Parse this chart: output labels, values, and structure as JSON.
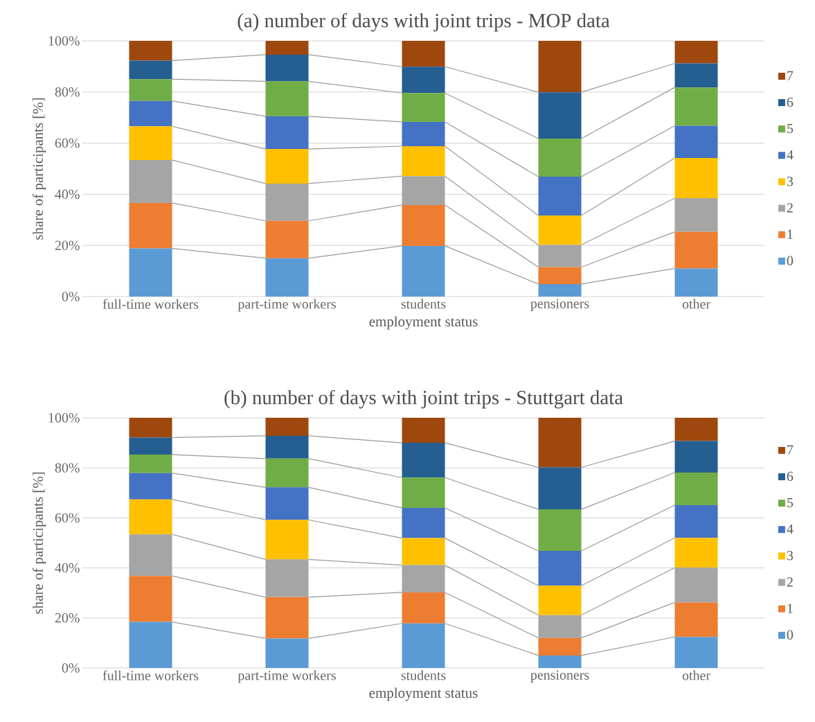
{
  "chart_data": [
    {
      "type": "bar",
      "stacked": true,
      "title": "(a) number of days with joint trips - MOP data",
      "xlabel": "employment status",
      "ylabel": "share of participants [%]",
      "categories": [
        "full-time workers",
        "part-time workers",
        "students",
        "pensioners",
        "other"
      ],
      "ylim": [
        0,
        100
      ],
      "yticks": [
        {
          "value": 0,
          "label": "0%"
        },
        {
          "value": 20,
          "label": "20%"
        },
        {
          "value": 40,
          "label": "40%"
        },
        {
          "value": 60,
          "label": "60%"
        },
        {
          "value": 80,
          "label": "80%"
        },
        {
          "value": 100,
          "label": "100%"
        }
      ],
      "grid": "y",
      "legend": "right",
      "series": [
        {
          "name": "0",
          "color": "#5b9bd5",
          "values": [
            18.8,
            15.0,
            19.8,
            4.9,
            11.0
          ]
        },
        {
          "name": "1",
          "color": "#ed7d31",
          "values": [
            17.8,
            14.6,
            16.0,
            6.6,
            14.3
          ]
        },
        {
          "name": "2",
          "color": "#a5a5a5",
          "values": [
            16.8,
            14.6,
            11.3,
            8.7,
            13.2
          ]
        },
        {
          "name": "3",
          "color": "#ffc000",
          "values": [
            13.2,
            13.5,
            11.7,
            11.5,
            15.7
          ]
        },
        {
          "name": "4",
          "color": "#4472c4",
          "values": [
            9.9,
            12.8,
            9.5,
            15.2,
            12.6
          ]
        },
        {
          "name": "5",
          "color": "#70ad47",
          "values": [
            8.5,
            13.7,
            11.3,
            14.9,
            15.0
          ]
        },
        {
          "name": "6",
          "color": "#255e91",
          "values": [
            7.3,
            10.4,
            10.3,
            18.1,
            9.4
          ]
        },
        {
          "name": "7",
          "color": "#9e480e",
          "values": [
            7.7,
            5.4,
            10.1,
            20.1,
            8.8
          ]
        }
      ]
    },
    {
      "type": "bar",
      "stacked": true,
      "title": "(b) number of days with joint trips - Stuttgart data",
      "xlabel": "employment status",
      "ylabel": "share of participants [%]",
      "categories": [
        "full-time workers",
        "part-time workers",
        "students",
        "pensioners",
        "other"
      ],
      "ylim": [
        0,
        100
      ],
      "yticks": [
        {
          "value": 0,
          "label": "0%"
        },
        {
          "value": 20,
          "label": "20%"
        },
        {
          "value": 40,
          "label": "40%"
        },
        {
          "value": 60,
          "label": "60%"
        },
        {
          "value": 80,
          "label": "80%"
        },
        {
          "value": 100,
          "label": "100%"
        }
      ],
      "grid": "y",
      "legend": "right",
      "series": [
        {
          "name": "0",
          "color": "#5b9bd5",
          "values": [
            18.4,
            11.8,
            17.8,
            5.0,
            12.4
          ]
        },
        {
          "name": "1",
          "color": "#ed7d31",
          "values": [
            18.4,
            16.5,
            12.4,
            7.0,
            13.8
          ]
        },
        {
          "name": "2",
          "color": "#a5a5a5",
          "values": [
            16.6,
            15.1,
            10.9,
            9.1,
            13.9
          ]
        },
        {
          "name": "3",
          "color": "#ffc000",
          "values": [
            14.0,
            15.8,
            10.8,
            11.8,
            11.9
          ]
        },
        {
          "name": "4",
          "color": "#4472c4",
          "values": [
            10.5,
            13.0,
            12.1,
            13.9,
            13.1
          ]
        },
        {
          "name": "5",
          "color": "#70ad47",
          "values": [
            7.4,
            11.5,
            12.1,
            16.6,
            13.0
          ]
        },
        {
          "name": "6",
          "color": "#255e91",
          "values": [
            6.8,
            9.1,
            13.9,
            16.8,
            12.6
          ]
        },
        {
          "name": "7",
          "color": "#9e480e",
          "values": [
            7.9,
            7.2,
            10.0,
            19.8,
            9.3
          ]
        }
      ]
    }
  ]
}
